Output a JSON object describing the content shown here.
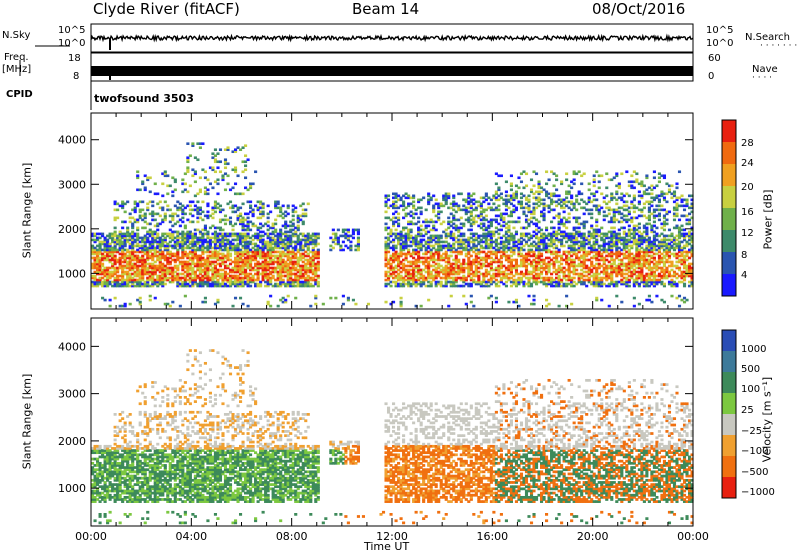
{
  "header": {
    "station": "Clyde River (fitACF)",
    "beam": "Beam 14",
    "date": "08/Oct/2016"
  },
  "strip_panels": {
    "nsky_label": "N.Sky",
    "nsky_ticks": [
      "10^5",
      "10^0"
    ],
    "nsearch_label": "N.Search",
    "nsearch_ticks": [
      "10^5",
      "10^0"
    ],
    "freq_label": "Freq.",
    "freq_unit": "[MHz]",
    "freq_ticks": [
      "18",
      "8"
    ],
    "nave_label": "Nave",
    "nave_ticks": [
      "60",
      "0"
    ],
    "cpid_label": "CPID",
    "cpid_value": "twofsound 3503"
  },
  "chart_data": [
    {
      "type": "heatmap",
      "name": "power",
      "ylabel": "Slant Range [km]",
      "yticks": [
        "1000",
        "2000",
        "3000",
        "4000"
      ],
      "ylim": [
        200,
        4600
      ],
      "xlim": [
        0,
        24
      ],
      "colorbar_label": "Power [dB]",
      "colorbar_ticks": [
        "4",
        "8",
        "12",
        "16",
        "20",
        "24",
        "28"
      ],
      "colorbar_range": [
        0,
        32
      ],
      "colors": [
        "#1a1aff",
        "#2a55b0",
        "#3d8a6a",
        "#6fb04a",
        "#c8d040",
        "#f0a020",
        "#f06a10",
        "#e82010"
      ]
    },
    {
      "type": "heatmap",
      "name": "velocity",
      "ylabel": "Slant Range [km]",
      "yticks": [
        "1000",
        "2000",
        "3000",
        "4000"
      ],
      "ylim": [
        200,
        4600
      ],
      "xlim": [
        0,
        24
      ],
      "xticks": [
        "00:00",
        "04:00",
        "08:00",
        "12:00",
        "16:00",
        "20:00",
        "00:00"
      ],
      "xlabel": "Time UT",
      "colorbar_label": "Velocity [m s⁻¹]",
      "colorbar_ticks": [
        "1000",
        "500",
        "100",
        "25",
        "−25",
        "−100",
        "−500",
        "−1000"
      ],
      "colors": [
        "#2a4db5",
        "#3d7a9a",
        "#3d8a5a",
        "#7cc840",
        "#c8c8c0",
        "#f0a030",
        "#f07010",
        "#e82010"
      ]
    }
  ]
}
